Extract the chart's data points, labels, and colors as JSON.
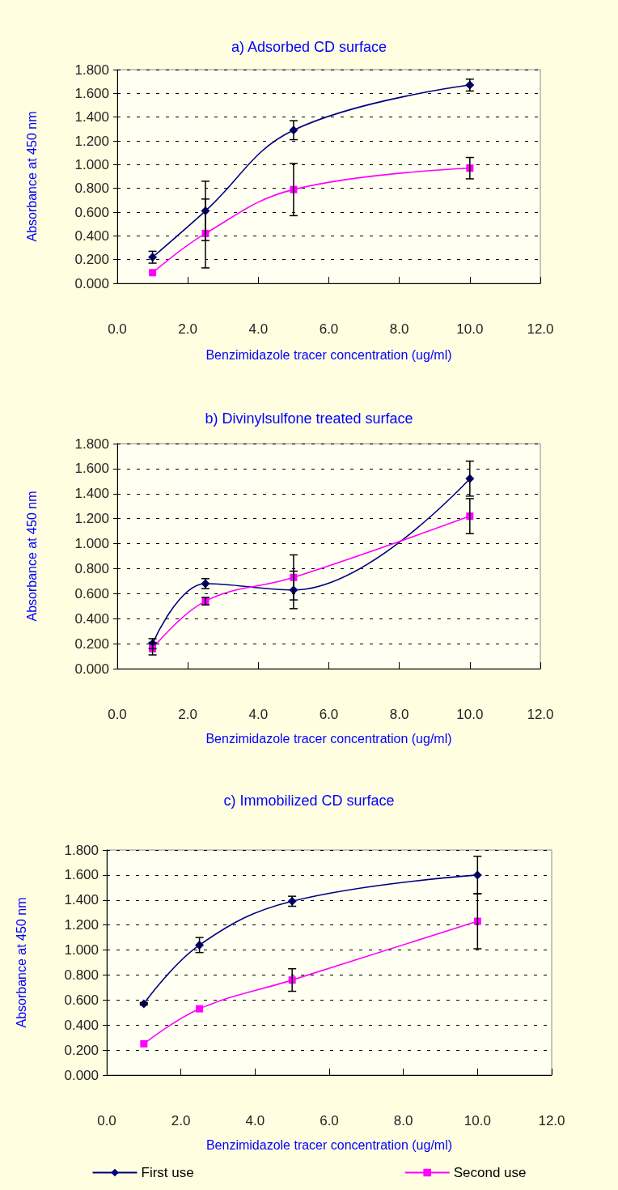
{
  "chart_data": [
    {
      "type": "line",
      "title": "a) Adsorbed CD surface",
      "xlabel": "Benzimidazole tracer concentration (ug/ml)",
      "ylabel": "Absorbance at 450 nm",
      "x": [
        1,
        2.5,
        5,
        10
      ],
      "xlim": [
        0,
        12
      ],
      "xticks": [
        {
          "value": 0,
          "label": "0.0"
        },
        {
          "value": 2,
          "label": "2.0"
        },
        {
          "value": 4,
          "label": "4.0"
        },
        {
          "value": 6,
          "label": "6.0"
        },
        {
          "value": 8,
          "label": "8.0"
        },
        {
          "value": 10,
          "label": "10.0"
        },
        {
          "value": 12,
          "label": "12.0"
        }
      ],
      "ylim": [
        0,
        1.8
      ],
      "yticks": [
        {
          "value": 0,
          "label": "0.000"
        },
        {
          "value": 0.2,
          "label": "0.200"
        },
        {
          "value": 0.4,
          "label": "0.400"
        },
        {
          "value": 0.6,
          "label": "0.600"
        },
        {
          "value": 0.8,
          "label": "0.800"
        },
        {
          "value": 1,
          "label": "1.000"
        },
        {
          "value": 1.2,
          "label": "1.200"
        },
        {
          "value": 1.4,
          "label": "1.400"
        },
        {
          "value": 1.6,
          "label": "1.600"
        },
        {
          "value": 1.8,
          "label": "1.800"
        }
      ],
      "grid": "y",
      "legend": false,
      "series": [
        {
          "color": "#000080",
          "marker": "diamond",
          "values": [
            0.22,
            0.61,
            1.29,
            1.67
          ],
          "errors": [
            0.05,
            0.25,
            0.08,
            0.05
          ]
        },
        {
          "color": "#ff00ff",
          "marker": "square",
          "values": [
            0.09,
            0.42,
            0.79,
            0.97
          ],
          "errors": [
            null,
            0.29,
            0.22,
            0.09
          ]
        }
      ]
    },
    {
      "type": "line",
      "title": "b) Divinylsulfone treated surface",
      "xlabel": "Benzimidazole tracer concentration (ug/ml)",
      "ylabel": "Absorbance at 450 nm",
      "x": [
        1,
        2.5,
        5,
        10
      ],
      "xlim": [
        0,
        12
      ],
      "xticks": [
        {
          "value": 0,
          "label": "0.0"
        },
        {
          "value": 2,
          "label": "2.0"
        },
        {
          "value": 4,
          "label": "4.0"
        },
        {
          "value": 6,
          "label": "6.0"
        },
        {
          "value": 8,
          "label": "8.0"
        },
        {
          "value": 10,
          "label": "10.0"
        },
        {
          "value": 12,
          "label": "12.0"
        }
      ],
      "ylim": [
        0,
        1.8
      ],
      "yticks": [
        {
          "value": 0,
          "label": "0.000"
        },
        {
          "value": 0.2,
          "label": "0.200"
        },
        {
          "value": 0.4,
          "label": "0.400"
        },
        {
          "value": 0.6,
          "label": "0.600"
        },
        {
          "value": 0.8,
          "label": "0.800"
        },
        {
          "value": 1,
          "label": "1.000"
        },
        {
          "value": 1.2,
          "label": "1.200"
        },
        {
          "value": 1.4,
          "label": "1.400"
        },
        {
          "value": 1.6,
          "label": "1.600"
        },
        {
          "value": 1.8,
          "label": "1.800"
        }
      ],
      "grid": "y",
      "legend": false,
      "series": [
        {
          "color": "#000080",
          "marker": "diamond",
          "values": [
            0.2,
            0.68,
            0.63,
            1.52
          ],
          "errors": [
            0.04,
            0.04,
            0.15,
            0.14
          ]
        },
        {
          "color": "#ff00ff",
          "marker": "square",
          "values": [
            0.16,
            0.54,
            0.73,
            1.22
          ],
          "errors": [
            0.05,
            0.03,
            0.18,
            0.14
          ]
        }
      ]
    },
    {
      "type": "line",
      "title": "c) Immobilized CD surface",
      "xlabel": "Benzimidazole tracer concentration (ug/ml)",
      "ylabel": "Absorbance at 450 nm",
      "x": [
        1,
        2.5,
        5,
        10
      ],
      "xlim": [
        0,
        12
      ],
      "xticks": [
        {
          "value": 0,
          "label": "0.0"
        },
        {
          "value": 2,
          "label": "2.0"
        },
        {
          "value": 4,
          "label": "4.0"
        },
        {
          "value": 6,
          "label": "6.0"
        },
        {
          "value": 8,
          "label": "8.0"
        },
        {
          "value": 10,
          "label": "10.0"
        },
        {
          "value": 12,
          "label": "12.0"
        }
      ],
      "ylim": [
        0,
        1.8
      ],
      "yticks": [
        {
          "value": 0,
          "label": "0.000"
        },
        {
          "value": 0.2,
          "label": "0.200"
        },
        {
          "value": 0.4,
          "label": "0.400"
        },
        {
          "value": 0.6,
          "label": "0.600"
        },
        {
          "value": 0.8,
          "label": "0.800"
        },
        {
          "value": 1,
          "label": "1.000"
        },
        {
          "value": 1.2,
          "label": "1.200"
        },
        {
          "value": 1.4,
          "label": "1.400"
        },
        {
          "value": 1.6,
          "label": "1.600"
        },
        {
          "value": 1.8,
          "label": "1.800"
        }
      ],
      "grid": "y",
      "legend": "bottom",
      "series": [
        {
          "name": "First use",
          "color": "#000080",
          "marker": "diamond",
          "values": [
            0.57,
            1.04,
            1.39,
            1.6
          ],
          "errors": [
            0.01,
            0.06,
            0.04,
            0.15
          ]
        },
        {
          "name": "Second use",
          "color": "#ff00ff",
          "marker": "square",
          "values": [
            0.25,
            0.53,
            0.76,
            1.23
          ],
          "errors": [
            null,
            null,
            0.09,
            0.22
          ]
        }
      ]
    }
  ]
}
